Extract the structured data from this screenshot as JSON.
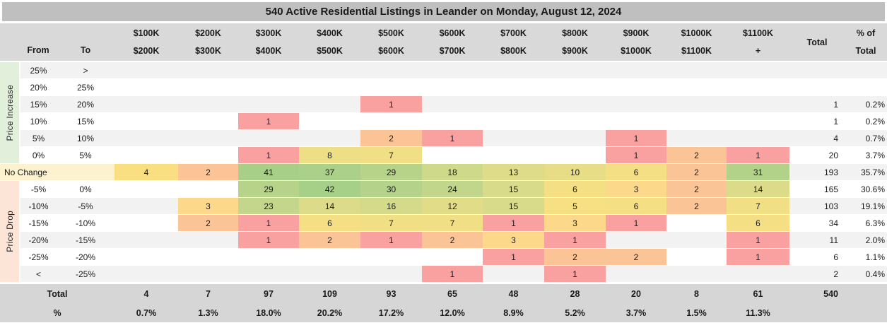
{
  "title": "540 Active Residential Listings in Leander on Monday, August 12, 2024",
  "header": {
    "from": "From",
    "to": "To",
    "total": "Total",
    "pct_line1": "% of",
    "pct_line2": "Total",
    "columns": [
      {
        "low": "$100K",
        "high": "$200K"
      },
      {
        "low": "$200K",
        "high": "$300K"
      },
      {
        "low": "$300K",
        "high": "$400K"
      },
      {
        "low": "$400K",
        "high": "$500K"
      },
      {
        "low": "$500K",
        "high": "$600K"
      },
      {
        "low": "$600K",
        "high": "$700K"
      },
      {
        "low": "$700K",
        "high": "$800K"
      },
      {
        "low": "$800K",
        "high": "$900K"
      },
      {
        "low": "$900K",
        "high": "$1000K"
      },
      {
        "low": "$1000K",
        "high": "$1100K"
      },
      {
        "low": "$1100K",
        "high": "+"
      }
    ]
  },
  "sections": {
    "increase": "Price Increase",
    "no_change": "No Change",
    "drop": "Price Drop"
  },
  "chart_data": {
    "type": "heatmap",
    "title": "540 Active Residential Listings in Leander on Monday, August 12, 2024",
    "col_labels": [
      "$100K-$200K",
      "$200K-$300K",
      "$300K-$400K",
      "$400K-$500K",
      "$500K-$600K",
      "$600K-$700K",
      "$700K-$800K",
      "$800K-$900K",
      "$900K-$1000K",
      "$1000K-$1100K",
      "$1100K+"
    ],
    "rows": [
      {
        "from": "25%",
        "to": ">",
        "values": [
          null,
          null,
          null,
          null,
          null,
          null,
          null,
          null,
          null,
          null,
          null
        ],
        "total": null,
        "pct": null
      },
      {
        "from": "20%",
        "to": "25%",
        "values": [
          null,
          null,
          null,
          null,
          null,
          null,
          null,
          null,
          null,
          null,
          null
        ],
        "total": null,
        "pct": null
      },
      {
        "from": "15%",
        "to": "20%",
        "values": [
          null,
          null,
          null,
          null,
          1,
          null,
          null,
          null,
          null,
          null,
          null
        ],
        "total": 1,
        "pct": "0.2%"
      },
      {
        "from": "10%",
        "to": "15%",
        "values": [
          null,
          null,
          1,
          null,
          null,
          null,
          null,
          null,
          null,
          null,
          null
        ],
        "total": 1,
        "pct": "0.2%"
      },
      {
        "from": "5%",
        "to": "10%",
        "values": [
          null,
          null,
          null,
          null,
          2,
          1,
          null,
          null,
          1,
          null,
          null
        ],
        "total": 4,
        "pct": "0.7%"
      },
      {
        "from": "0%",
        "to": "5%",
        "values": [
          null,
          null,
          1,
          8,
          7,
          null,
          null,
          null,
          1,
          2,
          1
        ],
        "total": 20,
        "pct": "3.7%"
      },
      {
        "from": "No Change",
        "to": "",
        "values": [
          4,
          2,
          41,
          37,
          29,
          18,
          13,
          10,
          6,
          2,
          31
        ],
        "total": 193,
        "pct": "35.7%"
      },
      {
        "from": "-5%",
        "to": "0%",
        "values": [
          null,
          null,
          29,
          42,
          30,
          24,
          15,
          6,
          3,
          2,
          14
        ],
        "total": 165,
        "pct": "30.6%"
      },
      {
        "from": "-10%",
        "to": "-5%",
        "values": [
          null,
          3,
          23,
          14,
          16,
          12,
          15,
          5,
          6,
          2,
          7
        ],
        "total": 103,
        "pct": "19.1%"
      },
      {
        "from": "-15%",
        "to": "-10%",
        "values": [
          null,
          2,
          1,
          6,
          7,
          7,
          1,
          3,
          1,
          null,
          6
        ],
        "total": 34,
        "pct": "6.3%"
      },
      {
        "from": "-20%",
        "to": "-15%",
        "values": [
          null,
          null,
          1,
          2,
          1,
          2,
          3,
          1,
          null,
          null,
          1
        ],
        "total": 11,
        "pct": "2.0%"
      },
      {
        "from": "-25%",
        "to": "-20%",
        "values": [
          null,
          null,
          null,
          null,
          null,
          null,
          1,
          2,
          2,
          null,
          1
        ],
        "total": 6,
        "pct": "1.1%"
      },
      {
        "from": "<",
        "to": "-25%",
        "values": [
          null,
          null,
          null,
          null,
          null,
          1,
          null,
          1,
          null,
          null,
          null
        ],
        "total": 2,
        "pct": "0.4%"
      }
    ],
    "column_totals": [
      4,
      7,
      97,
      109,
      93,
      65,
      48,
      28,
      20,
      8,
      61
    ],
    "column_pcts": [
      "0.7%",
      "1.3%",
      "18.0%",
      "20.2%",
      "17.2%",
      "12.0%",
      "8.9%",
      "5.2%",
      "3.7%",
      "1.5%",
      "11.3%"
    ],
    "grand_total": 540,
    "footer_labels": {
      "total": "Total",
      "pct": "%"
    }
  },
  "heat_colors": {
    "1": "#F9A0A1",
    "2": "#FBC497",
    "3": "#FBD88A",
    "4": "#F9DF81",
    "5": "#F7E083",
    "6": "#F4DF84",
    "7": "#F1DF85",
    "8": "#EEDE86",
    "10": "#E8DD87",
    "12": "#E1DC88",
    "13": "#DEDC88",
    "14": "#DBDB89",
    "15": "#D8DB89",
    "16": "#D5DA8A",
    "18": "#CFD98A",
    "23": "#C3D68B",
    "24": "#C1D68B",
    "29": "#B7D38A",
    "30": "#B5D28A",
    "31": "#B3D289",
    "37": "#ABD089",
    "41": "#A8CF88",
    "42": "#A6CF88"
  },
  "colors": {
    "title_bg": "#BFBFBF",
    "header_bg": "#D9D9D9",
    "footer_bg": "#D6D6D6",
    "stripe": "#F2F2F2",
    "row_white": "#FFFFFF",
    "no_change_bg": "#FDF2D0",
    "increase_band_bg": "#E2EFDA",
    "drop_band_bg": "#FCE4D6"
  }
}
